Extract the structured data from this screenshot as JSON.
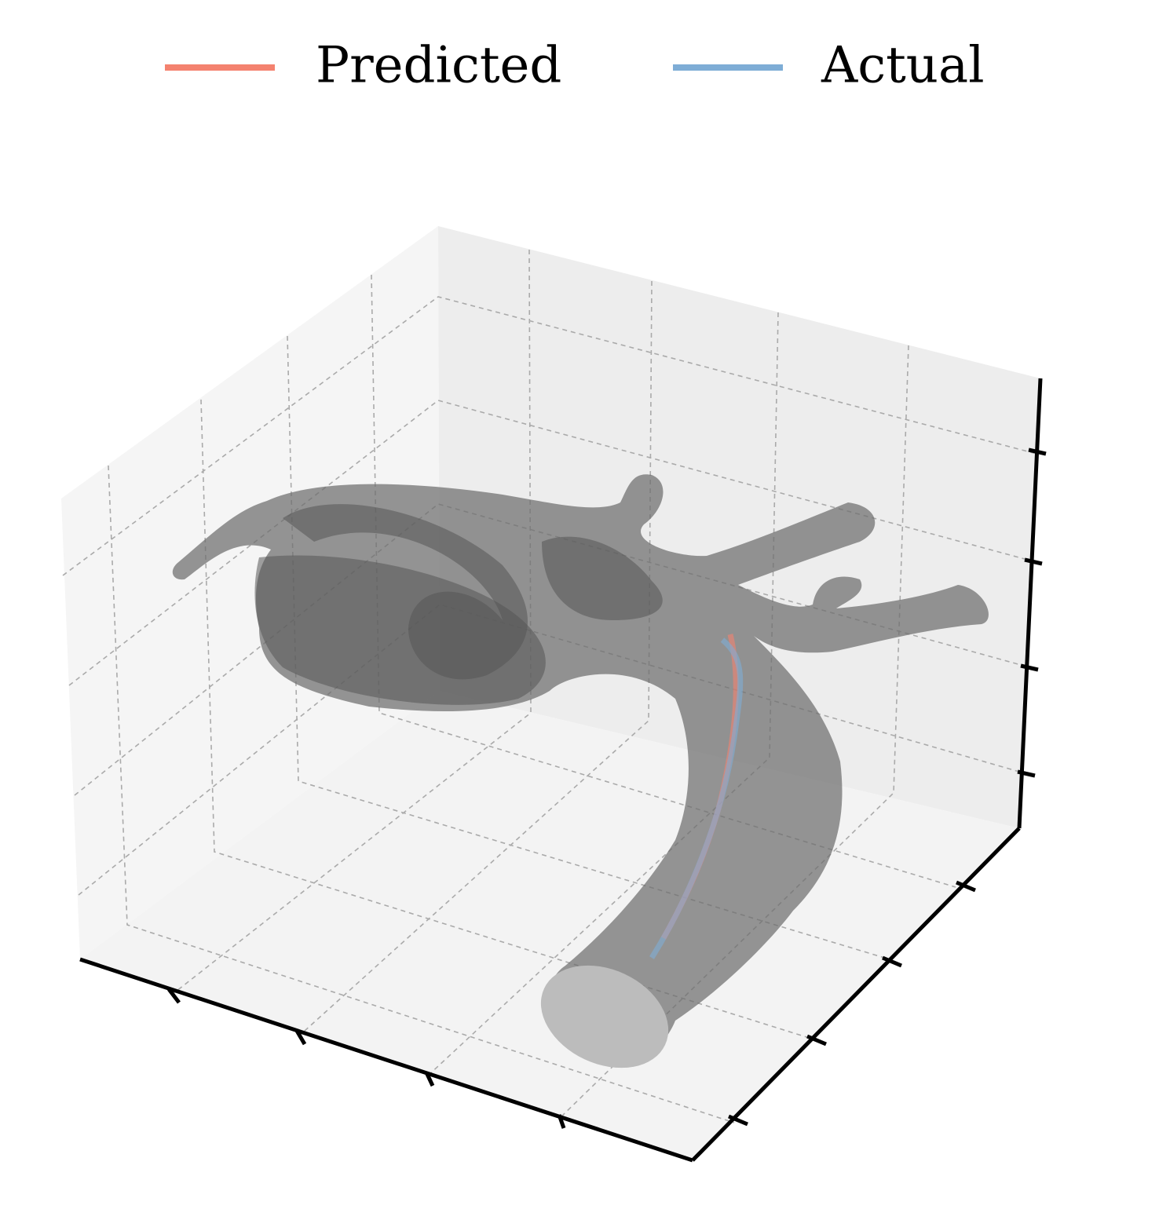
{
  "chart_data": {
    "type": "line3d",
    "series": [
      {
        "name": "Predicted",
        "color": "#f4826f"
      },
      {
        "name": "Actual",
        "color": "#7eadd6"
      }
    ],
    "grid": true,
    "legend": "top"
  }
}
